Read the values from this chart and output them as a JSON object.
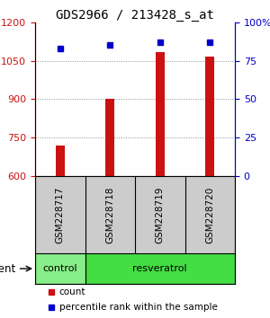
{
  "title": "GDS2966 / 213428_s_at",
  "samples": [
    "GSM228717",
    "GSM228718",
    "GSM228719",
    "GSM228720"
  ],
  "bar_values": [
    720,
    900,
    1085,
    1065
  ],
  "percentile_values": [
    83,
    85,
    87,
    87
  ],
  "ymin": 600,
  "ymax": 1200,
  "yticks_left": [
    600,
    750,
    900,
    1050,
    1200
  ],
  "yticks_right": [
    0,
    25,
    50,
    75,
    100
  ],
  "bar_color": "#cc1111",
  "percentile_color": "#0000cc",
  "groups": [
    {
      "label": "control",
      "indices": [
        0
      ],
      "color": "#88ee88"
    },
    {
      "label": "resveratrol",
      "indices": [
        1,
        2,
        3
      ],
      "color": "#44dd44"
    }
  ],
  "group_label_name": "agent",
  "legend_count_label": "count",
  "legend_pct_label": "percentile rank within the sample",
  "bar_width": 0.18,
  "background_color": "#ffffff",
  "plot_bg_color": "#ffffff",
  "sample_box_color": "#cccccc",
  "dotted_line_color": "#888888",
  "title_fontsize": 10,
  "tick_fontsize": 8,
  "label_fontsize": 8,
  "legend_fontsize": 7.5
}
